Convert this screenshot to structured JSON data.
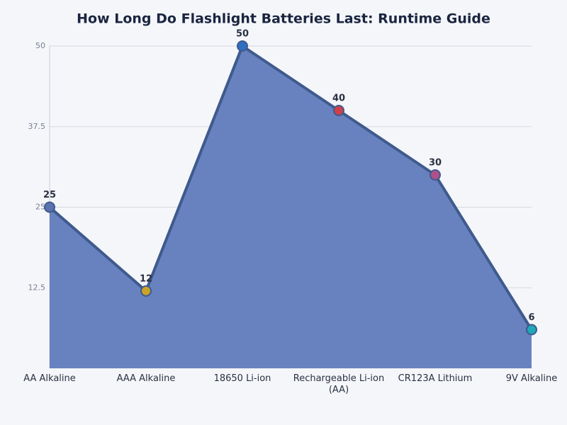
{
  "chart_data": {
    "type": "area",
    "title": "How Long Do Flashlight Batteries Last: Runtime Guide",
    "categories": [
      "AA Alkaline",
      "AAA Alkaline",
      "18650 Li-ion",
      "Rechargeable Li-ion (AA)",
      "CR123A Lithium",
      "9V Alkaline"
    ],
    "values": [
      25,
      12,
      50,
      40,
      30,
      6
    ],
    "color": "#6882c0",
    "line_color": "#3f5a8c",
    "point_colors": [
      "#5a72b0",
      "#c9a227",
      "#2e6fbf",
      "#d0404a",
      "#b0508a",
      "#1fa8b8"
    ],
    "ylim": [
      0,
      50
    ],
    "yticks": [
      12.5,
      25,
      37.5,
      50
    ],
    "grid": true
  }
}
